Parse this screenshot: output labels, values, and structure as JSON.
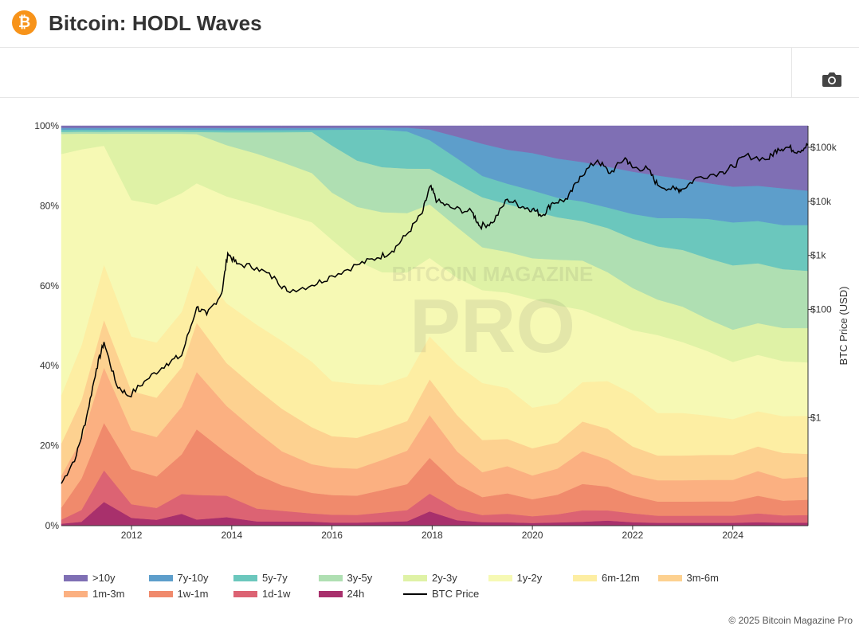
{
  "header": {
    "logo_glyph": "₿",
    "title": "Bitcoin: HODL Waves"
  },
  "toolbar": {
    "camera_icon": "camera-icon"
  },
  "watermark": {
    "line1": "BITCOIN MAGAZINE",
    "line2": "PRO"
  },
  "copyright": "© 2025 Bitcoin Magazine Pro",
  "colors": {
    "background": "#ffffff",
    "price_line": "#000000"
  },
  "chart_data": {
    "type": "area",
    "title": "Bitcoin: HODL Waves",
    "stacking": "percent",
    "x": [
      2010.6,
      2011.0,
      2011.45,
      2012.0,
      2012.5,
      2013.0,
      2013.3,
      2013.9,
      2014.5,
      2015.0,
      2015.6,
      2016.0,
      2016.5,
      2017.0,
      2017.5,
      2017.95,
      2018.5,
      2019.0,
      2019.5,
      2020.0,
      2020.5,
      2021.0,
      2021.5,
      2022.0,
      2022.5,
      2023.0,
      2023.5,
      2024.0,
      2024.5,
      2025.0,
      2025.5
    ],
    "x_ticks": [
      "2012",
      "2014",
      "2016",
      "2018",
      "2020",
      "2022",
      "2024"
    ],
    "y_left_ticks": [
      "0%",
      "20%",
      "40%",
      "60%",
      "80%",
      "100%"
    ],
    "y_right_ticks": [
      "$1",
      "$100",
      "$1k",
      "$10k",
      "$100k"
    ],
    "y_right_label": "BTC Price (USD)",
    "y_left_range": [
      0,
      100
    ],
    "y_right_log_range": [
      0.01,
      250000
    ],
    "series": [
      {
        "name": "24h",
        "color": "#a8306c",
        "values": [
          0.5,
          1,
          6,
          2,
          1.5,
          3,
          1.5,
          2,
          1,
          1,
          1,
          0.8,
          0.8,
          1,
          1.2,
          4,
          1.5,
          1,
          1,
          0.8,
          1,
          1.2,
          1.5,
          1,
          0.8,
          0.8,
          0.8,
          0.8,
          1,
          0.8,
          0.8
        ]
      },
      {
        "name": "1d-1w",
        "color": "#dc6373",
        "values": [
          1,
          3,
          8,
          3.5,
          3,
          5,
          6,
          5,
          3,
          2.5,
          2,
          2,
          2,
          2.5,
          3,
          5,
          3,
          2,
          2.5,
          2,
          2.5,
          3.5,
          3,
          2.5,
          2,
          2,
          2,
          2,
          2.5,
          2,
          2
        ]
      },
      {
        "name": "1w-1m",
        "color": "#f08a6c",
        "values": [
          3,
          8,
          12,
          9,
          8,
          10,
          16,
          10,
          8,
          6,
          5,
          5,
          5,
          6,
          7,
          10,
          7,
          5,
          6,
          5,
          6,
          8,
          7,
          5,
          4,
          4,
          4,
          4,
          5,
          4,
          4
        ]
      },
      {
        "name": "1m-3m",
        "color": "#fbb081",
        "values": [
          8,
          10,
          14,
          10,
          10,
          12,
          14,
          11,
          10,
          8,
          7,
          7,
          7,
          8,
          9,
          12,
          9,
          7,
          8,
          7,
          8,
          10,
          8,
          6,
          6,
          6,
          6,
          6,
          7,
          6,
          6
        ]
      },
      {
        "name": "3m-6m",
        "color": "#fdd190",
        "values": [
          8,
          10,
          12,
          10,
          10,
          10,
          12,
          10,
          10,
          10,
          9,
          8,
          8,
          8,
          8,
          10,
          10,
          9,
          8,
          8,
          8,
          9,
          9,
          8,
          7,
          7,
          7,
          7,
          7,
          7,
          6
        ]
      },
      {
        "name": "6m-12m",
        "color": "#fdeea3",
        "values": [
          12,
          14,
          14,
          14,
          14,
          14,
          14,
          14,
          15,
          16,
          16,
          14,
          14,
          12,
          12,
          12,
          14,
          16,
          15,
          12,
          12,
          12,
          14,
          15,
          12,
          12,
          11,
          10,
          10,
          10,
          10
        ]
      },
      {
        "name": "1y-2y",
        "color": "#f6f9b4",
        "values": [
          60,
          50,
          30,
          35,
          35,
          30,
          20,
          25,
          28,
          30,
          34,
          36,
          32,
          30,
          28,
          22,
          24,
          26,
          28,
          32,
          30,
          22,
          18,
          18,
          22,
          20,
          18,
          16,
          16,
          15,
          14
        ]
      },
      {
        "name": "2y-3y",
        "color": "#dff2a6",
        "values": [
          5,
          4,
          3,
          17,
          18,
          15,
          12,
          12,
          12,
          12,
          12,
          12,
          14,
          16,
          16,
          15,
          14,
          12,
          12,
          12,
          14,
          15,
          14,
          12,
          10,
          10,
          9,
          9,
          9,
          9,
          9
        ]
      },
      {
        "name": "3y-5y",
        "color": "#afdfb2",
        "values": [
          0.5,
          0.5,
          0.5,
          0.5,
          0.5,
          0.5,
          0.5,
          3,
          5,
          7,
          10,
          12,
          12,
          12,
          12,
          10,
          12,
          14,
          14,
          14,
          13,
          12,
          13,
          14,
          15,
          16,
          17,
          18,
          17,
          16,
          15
        ]
      },
      {
        "name": "5y-7y",
        "color": "#6bc7bd",
        "values": [
          0.5,
          0.5,
          0.5,
          0.5,
          0.5,
          0.5,
          0.5,
          0.5,
          0.5,
          0.5,
          0.5,
          4,
          8,
          10,
          10,
          8,
          7,
          6,
          6,
          6,
          6,
          6,
          6,
          7,
          8,
          9,
          11,
          12,
          12,
          12,
          12
        ]
      },
      {
        "name": "7y-10y",
        "color": "#5d9ecb",
        "values": [
          0.5,
          0.5,
          0.5,
          0.5,
          0.5,
          0.5,
          0.5,
          0.5,
          0.5,
          0.5,
          0.5,
          0.5,
          0.5,
          0.5,
          1,
          3,
          6,
          9,
          10,
          11,
          12,
          12,
          12,
          12,
          12,
          11,
          10,
          10,
          10,
          10,
          9
        ]
      },
      {
        "name": ">10y",
        "color": "#7f6fb4",
        "values": [
          0.5,
          0.5,
          0.5,
          0.5,
          0.5,
          0.5,
          0.5,
          0.5,
          0.5,
          0.5,
          0.5,
          0.5,
          0.5,
          0.5,
          0.5,
          1,
          3,
          5,
          7,
          8,
          10,
          11,
          12,
          13,
          14,
          15,
          16,
          17,
          17,
          17,
          17
        ]
      }
    ],
    "price_series": {
      "name": "BTC Price",
      "color": "#000000",
      "axis": "right",
      "points": [
        [
          2010.6,
          0.06
        ],
        [
          2010.9,
          0.2
        ],
        [
          2011.1,
          1
        ],
        [
          2011.3,
          8
        ],
        [
          2011.45,
          25
        ],
        [
          2011.7,
          4
        ],
        [
          2011.95,
          2.5
        ],
        [
          2012.3,
          5
        ],
        [
          2012.7,
          10
        ],
        [
          2013.0,
          14
        ],
        [
          2013.3,
          110
        ],
        [
          2013.5,
          80
        ],
        [
          2013.8,
          200
        ],
        [
          2013.92,
          1100
        ],
        [
          2014.1,
          700
        ],
        [
          2014.5,
          600
        ],
        [
          2014.9,
          350
        ],
        [
          2015.1,
          220
        ],
        [
          2015.6,
          280
        ],
        [
          2016.0,
          420
        ],
        [
          2016.5,
          670
        ],
        [
          2016.9,
          900
        ],
        [
          2017.2,
          1200
        ],
        [
          2017.5,
          2500
        ],
        [
          2017.8,
          6000
        ],
        [
          2017.96,
          19000
        ],
        [
          2018.1,
          10000
        ],
        [
          2018.4,
          7500
        ],
        [
          2018.8,
          6300
        ],
        [
          2018.95,
          3500
        ],
        [
          2019.2,
          4000
        ],
        [
          2019.5,
          11000
        ],
        [
          2019.8,
          8000
        ],
        [
          2020.0,
          7200
        ],
        [
          2020.2,
          5500
        ],
        [
          2020.4,
          9500
        ],
        [
          2020.7,
          11000
        ],
        [
          2020.95,
          29000
        ],
        [
          2021.3,
          58000
        ],
        [
          2021.55,
          33000
        ],
        [
          2021.85,
          64000
        ],
        [
          2022.0,
          42000
        ],
        [
          2022.3,
          40000
        ],
        [
          2022.5,
          20000
        ],
        [
          2022.85,
          16500
        ],
        [
          2023.0,
          17000
        ],
        [
          2023.3,
          28000
        ],
        [
          2023.8,
          35000
        ],
        [
          2024.0,
          44000
        ],
        [
          2024.25,
          70000
        ],
        [
          2024.7,
          60000
        ],
        [
          2024.9,
          95000
        ],
        [
          2025.1,
          100000
        ],
        [
          2025.3,
          84000
        ],
        [
          2025.5,
          110000
        ]
      ]
    },
    "legend": [
      {
        "label": ">10y",
        "color": "#7f6fb4"
      },
      {
        "label": "7y-10y",
        "color": "#5d9ecb"
      },
      {
        "label": "5y-7y",
        "color": "#6bc7bd"
      },
      {
        "label": "3y-5y",
        "color": "#afdfb2"
      },
      {
        "label": "2y-3y",
        "color": "#dff2a6"
      },
      {
        "label": "1y-2y",
        "color": "#f6f9b4"
      },
      {
        "label": "6m-12m",
        "color": "#fdeea3"
      },
      {
        "label": "3m-6m",
        "color": "#fdd190"
      },
      {
        "label": "1m-3m",
        "color": "#fbb081"
      },
      {
        "label": "1w-1m",
        "color": "#f08a6c"
      },
      {
        "label": "1d-1w",
        "color": "#dc6373"
      },
      {
        "label": "24h",
        "color": "#a8306c"
      },
      {
        "label": "BTC Price",
        "color": "#000000",
        "line": true
      }
    ],
    "legend_position": "bottom"
  }
}
